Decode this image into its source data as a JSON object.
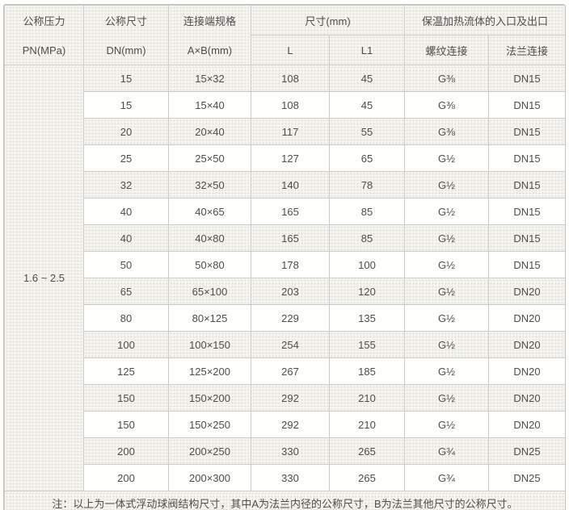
{
  "colors": {
    "shaded_cell_bg": "#f5f4ef",
    "dot_pattern": "#dedbd4",
    "cell_border": "#cccbc7",
    "outer_border": "#c3c2be",
    "text": "#4d4d4d",
    "bottom_bar": "#d6d5d3",
    "white_row_bg": "#fffffe"
  },
  "table": {
    "header": {
      "pressure": {
        "line1": "公称压力",
        "line2": "PN(MPa)"
      },
      "dn": {
        "line1": "公称尺寸",
        "line2": "DN(mm)"
      },
      "conn": {
        "line1": "连接端规格",
        "line2": "A×B(mm)"
      },
      "size_group": "尺寸(mm)",
      "l": "L",
      "l1": "L1",
      "flow_group": "保温加热流体的入口及出口",
      "thread": "螺纹连接",
      "flange": "法兰连接"
    },
    "pressure_value": "1.6 ~ 2.5",
    "rows": [
      {
        "dn": "15",
        "ab": "15×32",
        "l": "108",
        "l1": "45",
        "thread": "G⅜",
        "flange": "DN15"
      },
      {
        "dn": "15",
        "ab": "15×40",
        "l": "108",
        "l1": "45",
        "thread": "G⅜",
        "flange": "DN15"
      },
      {
        "dn": "20",
        "ab": "20×40",
        "l": "117",
        "l1": "55",
        "thread": "G⅜",
        "flange": "DN15"
      },
      {
        "dn": "25",
        "ab": "25×50",
        "l": "127",
        "l1": "65",
        "thread": "G½",
        "flange": "DN15"
      },
      {
        "dn": "32",
        "ab": "32×50",
        "l": "140",
        "l1": "78",
        "thread": "G½",
        "flange": "DN15"
      },
      {
        "dn": "40",
        "ab": "40×65",
        "l": "165",
        "l1": "85",
        "thread": "G½",
        "flange": "DN15"
      },
      {
        "dn": "40",
        "ab": "40×80",
        "l": "165",
        "l1": "85",
        "thread": "G½",
        "flange": "DN15"
      },
      {
        "dn": "50",
        "ab": "50×80",
        "l": "178",
        "l1": "100",
        "thread": "G½",
        "flange": "DN15"
      },
      {
        "dn": "65",
        "ab": "65×100",
        "l": "203",
        "l1": "120",
        "thread": "G½",
        "flange": "DN20"
      },
      {
        "dn": "80",
        "ab": "80×125",
        "l": "229",
        "l1": "135",
        "thread": "G½",
        "flange": "DN20"
      },
      {
        "dn": "100",
        "ab": "100×150",
        "l": "254",
        "l1": "155",
        "thread": "G½",
        "flange": "DN20"
      },
      {
        "dn": "125",
        "ab": "125×200",
        "l": "267",
        "l1": "185",
        "thread": "G½",
        "flange": "DN20"
      },
      {
        "dn": "150",
        "ab": "150×200",
        "l": "292",
        "l1": "210",
        "thread": "G½",
        "flange": "DN20"
      },
      {
        "dn": "150",
        "ab": "150×250",
        "l": "292",
        "l1": "210",
        "thread": "G½",
        "flange": "DN20"
      },
      {
        "dn": "200",
        "ab": "200×250",
        "l": "330",
        "l1": "265",
        "thread": "G¾",
        "flange": "DN25"
      },
      {
        "dn": "200",
        "ab": "200×300",
        "l": "330",
        "l1": "265",
        "thread": "G¾",
        "flange": "DN25"
      }
    ],
    "note": "注：以上为一体式浮动球阀结构尺寸，其中A为法兰内径的公称尺寸，B为法兰其他尺寸的公称尺寸。"
  }
}
